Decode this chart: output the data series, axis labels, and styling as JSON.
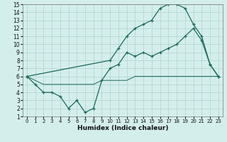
{
  "xlabel": "Humidex (Indice chaleur)",
  "background_color": "#d4eeec",
  "grid_color": "#aed4d0",
  "line_color": "#1a6b5a",
  "xlim": [
    -0.5,
    23.5
  ],
  "ylim": [
    1,
    15
  ],
  "xticks": [
    0,
    1,
    2,
    3,
    4,
    5,
    6,
    7,
    8,
    9,
    10,
    11,
    12,
    13,
    14,
    15,
    16,
    17,
    18,
    19,
    20,
    21,
    22,
    23
  ],
  "yticks": [
    1,
    2,
    3,
    4,
    5,
    6,
    7,
    8,
    9,
    10,
    11,
    12,
    13,
    14,
    15
  ],
  "line1_x": [
    0,
    1,
    2,
    3,
    4,
    5,
    6,
    7,
    8,
    9,
    10,
    11,
    12,
    13,
    14,
    15,
    16,
    17,
    18,
    19,
    20,
    21,
    22,
    23
  ],
  "line1_y": [
    6,
    5,
    4,
    4,
    3.5,
    2,
    3,
    1.5,
    2,
    5.5,
    7,
    7.5,
    9,
    8.5,
    9,
    8.5,
    9,
    9.5,
    10,
    11,
    12,
    10.5,
    7.5,
    6
  ],
  "line2_x": [
    0,
    10,
    11,
    12,
    13,
    14,
    15,
    16,
    17,
    18,
    19,
    20,
    21,
    22,
    23
  ],
  "line2_y": [
    6,
    8,
    9.5,
    11,
    12,
    12.5,
    13,
    14.5,
    15,
    15,
    14.5,
    12.5,
    11,
    7.5,
    6
  ],
  "line3_x": [
    0,
    1,
    2,
    3,
    4,
    5,
    6,
    7,
    8,
    9,
    10,
    11,
    12,
    13,
    14,
    15,
    16,
    17,
    18,
    19,
    20,
    21,
    22,
    23
  ],
  "line3_y": [
    6,
    5.5,
    5,
    5,
    5,
    5,
    5,
    5,
    5,
    5.5,
    5.5,
    5.5,
    5.5,
    6,
    6,
    6,
    6,
    6,
    6,
    6,
    6,
    6,
    6,
    6
  ]
}
